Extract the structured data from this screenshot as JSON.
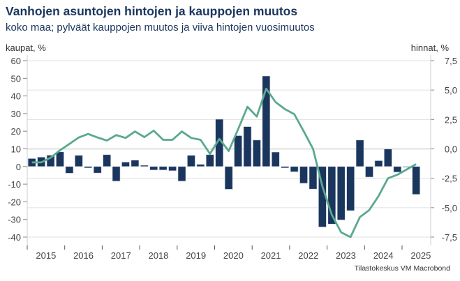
{
  "title": "Vanhojen asuntojen hintojen ja kauppojen muutos",
  "subtitle": "koko maa; pylväät kauppojen muutos ja viiva hintojen vuosimuutos",
  "source": "Tilastokeskus VM Macrobond",
  "colors": {
    "bars": "#1b365d",
    "line": "#5aa98f",
    "grid": "#e0e0e0"
  },
  "chart_data": {
    "type": "bar+line",
    "title": "Vanhojen asuntojen hintojen ja kauppojen muutos",
    "ylabel_left": "kaupat, %",
    "ylabel_right": "hinnat, %",
    "ylim_left": [
      -40,
      60
    ],
    "ylim_right": [
      -7.5,
      7.5
    ],
    "yticks_left": [
      "60",
      "50",
      "40",
      "30",
      "20",
      "10",
      "0",
      "-10",
      "-20",
      "-30",
      "-40"
    ],
    "yticks_right": [
      "7,5",
      "5,0",
      "2,5",
      "0,0",
      "-2,5",
      "-5,0",
      "-7,5"
    ],
    "xticks": [
      "2015",
      "2016",
      "2017",
      "2018",
      "2019",
      "2020",
      "2021",
      "2022",
      "2023",
      "2024",
      "2025"
    ],
    "grid": true,
    "frequency": "quarterly",
    "start": "2015Q1",
    "bars": [
      4.5,
      5.3,
      6.4,
      8.3,
      -3.8,
      6.3,
      -0.8,
      -3.7,
      6.7,
      -8.3,
      2.5,
      3.6,
      0.7,
      -2,
      -2,
      -2.4,
      -8.3,
      6.3,
      1.2,
      6.7,
      26.8,
      -12.9,
      17.5,
      22.6,
      15,
      51.3,
      8.2,
      -0.8,
      -3,
      -9.5,
      -12.8,
      -34.3,
      -32.6,
      -30.3,
      -25,
      15,
      -6,
      3.3,
      9.9,
      -3.2,
      -0.3,
      -15.8
    ],
    "line": [
      -1.15,
      -1.15,
      -0.75,
      -0.12,
      0.42,
      0.97,
      1.27,
      0.97,
      0.71,
      1.17,
      0.93,
      1.48,
      1.0,
      1.55,
      0.77,
      0.77,
      1.48,
      0.93,
      0.77,
      -0.42,
      0.85,
      -0.18,
      1.66,
      3.58,
      2.75,
      5.12,
      3.98,
      3.38,
      2.95,
      1.5,
      0.0,
      -3.2,
      -5.6,
      -7.1,
      -7.5,
      -5.8,
      -5.2,
      -4.0,
      -2.5,
      -2.2,
      -1.75,
      -1.3
    ]
  }
}
